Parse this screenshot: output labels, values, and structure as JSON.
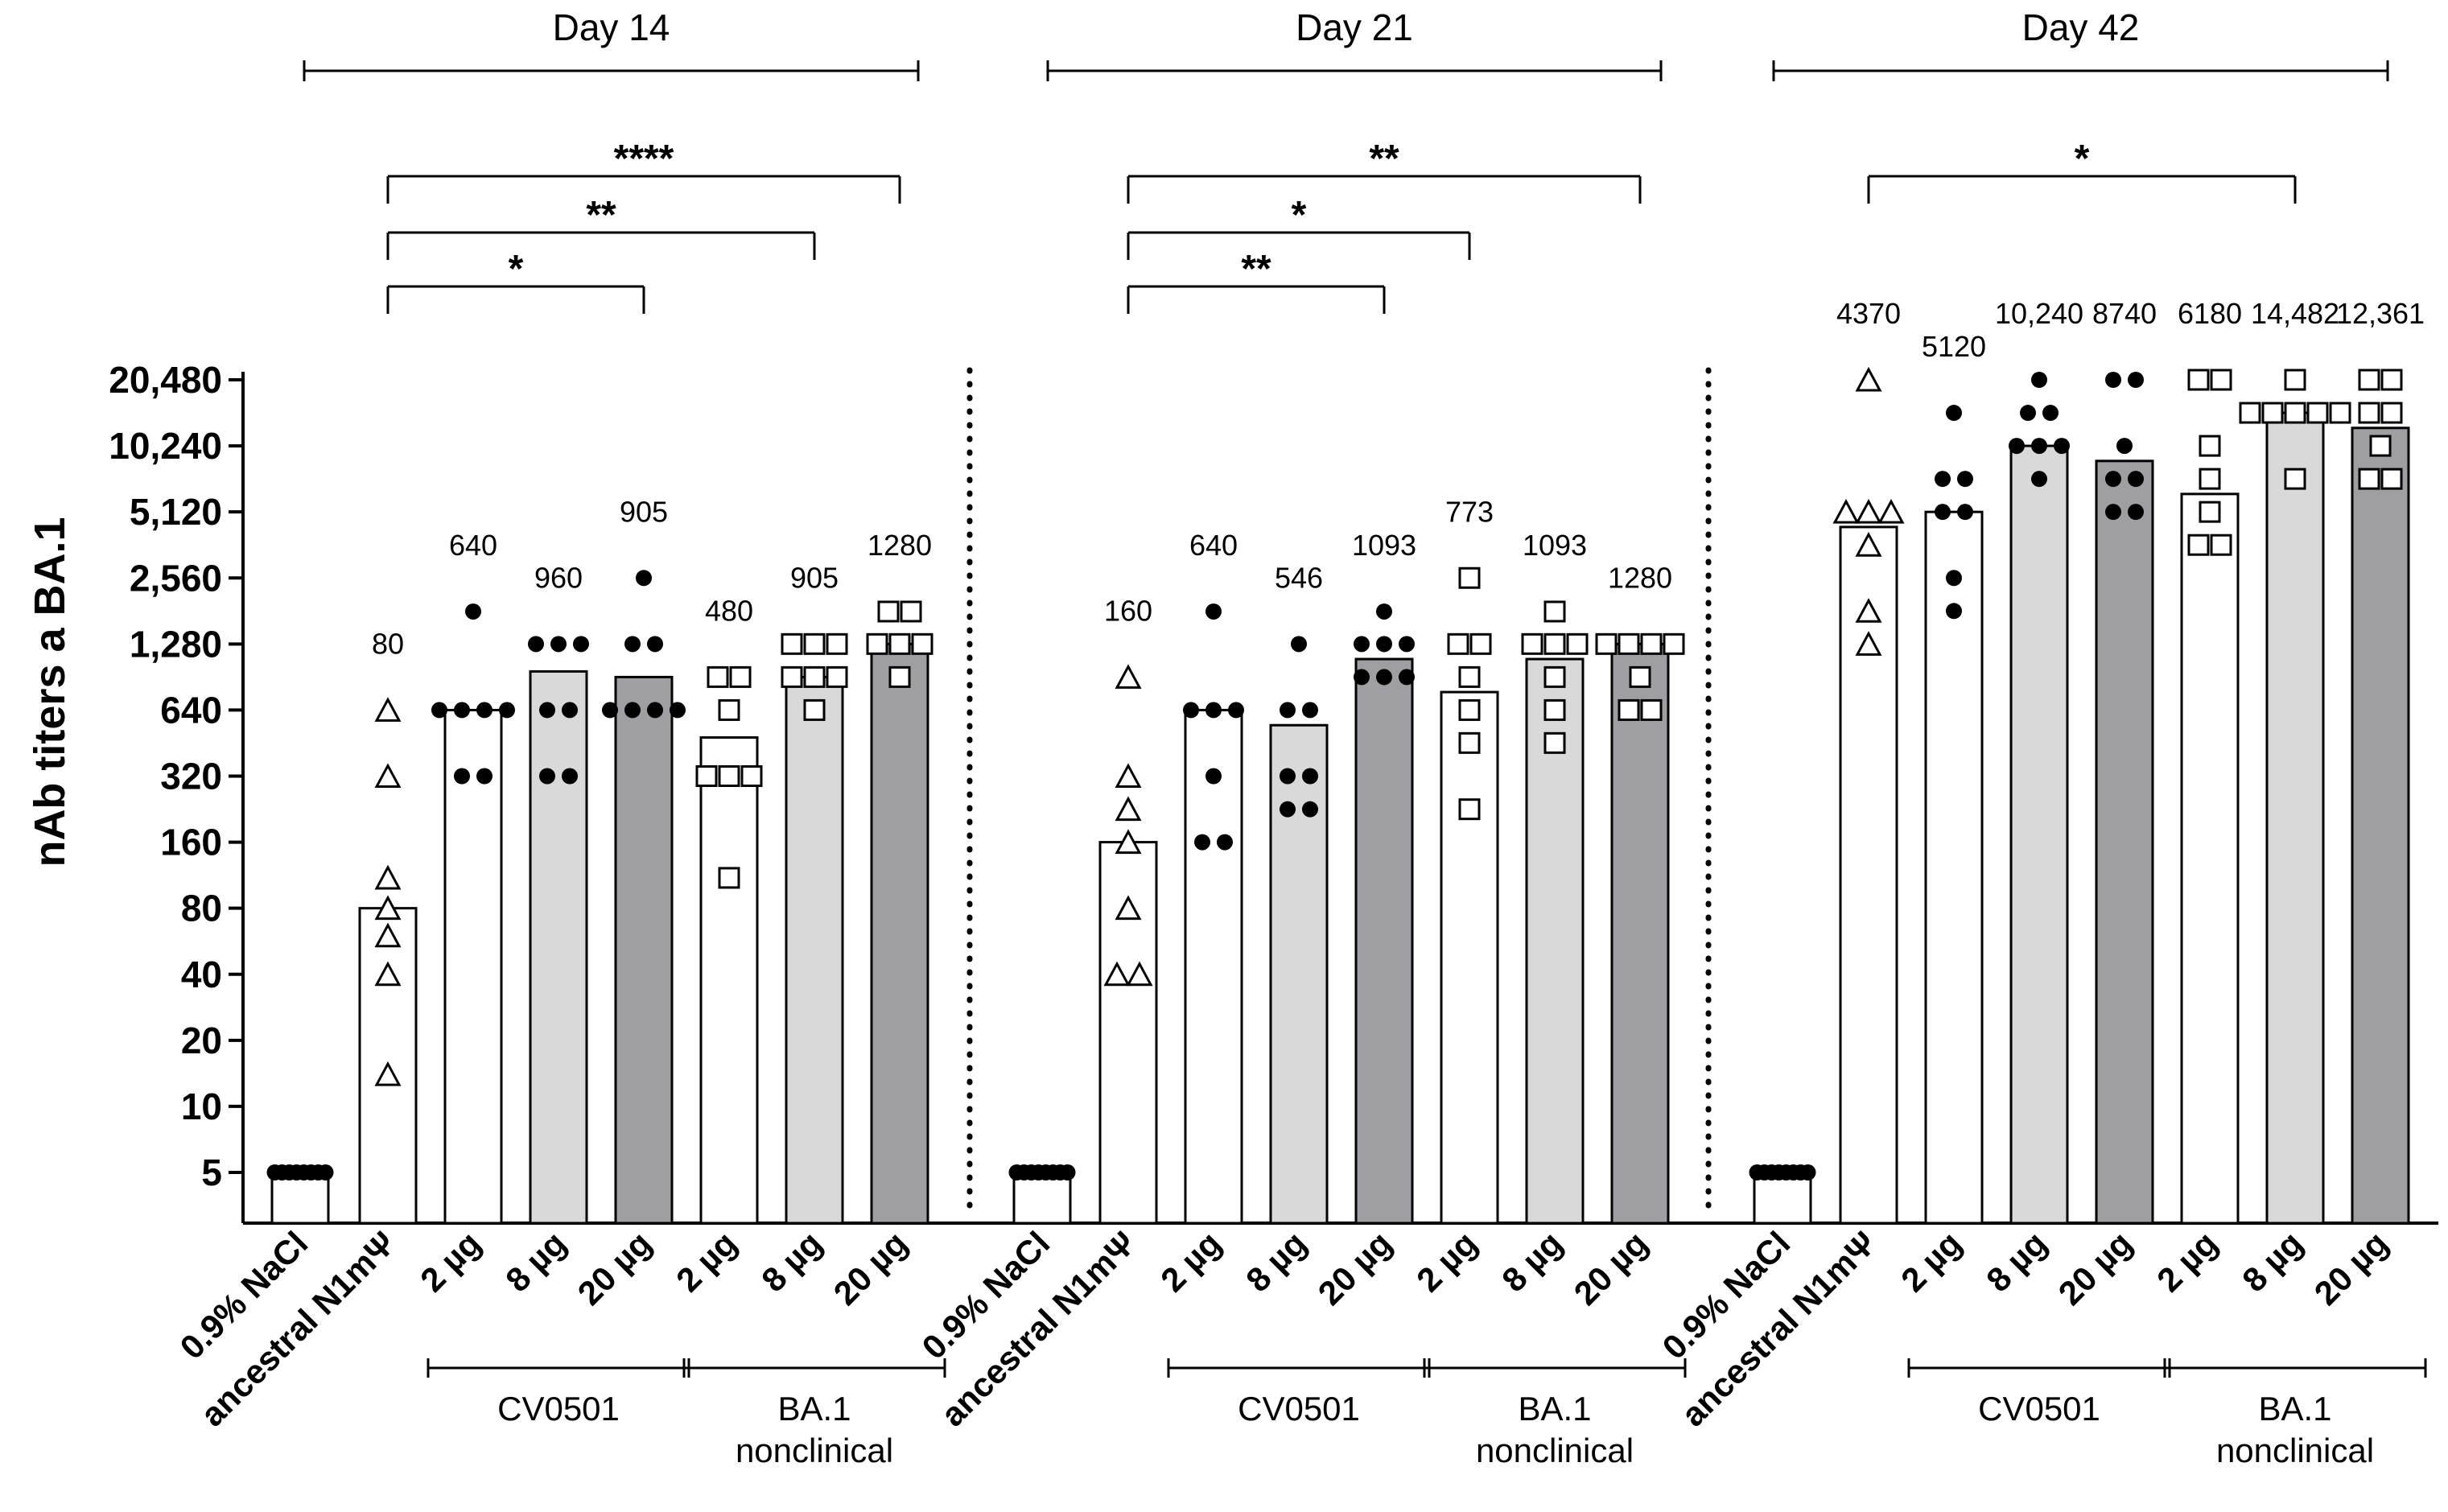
{
  "chart_data": {
    "type": "bar",
    "scale": "log2",
    "ylabel": "nAb titers a BA.1",
    "y_ticks": [
      "5",
      "10",
      "20",
      "40",
      "80",
      "160",
      "320",
      "640",
      "1,280",
      "2,560",
      "5,120",
      "10,240",
      "20,480"
    ],
    "y_tick_values": [
      5,
      10,
      20,
      40,
      80,
      160,
      320,
      640,
      1280,
      2560,
      5120,
      10240,
      20480
    ],
    "categories": [
      "0.9% NaCl",
      "ancestral N1mΨ",
      "2 µg",
      "8 µg",
      "20 µg",
      "2 µg",
      "8 µg",
      "20 µg"
    ],
    "group_labels": [
      {
        "label": "CV0501",
        "members": [
          2,
          3,
          4
        ]
      },
      {
        "label": "BA.1",
        "label2": "nonclinical",
        "members": [
          5,
          6,
          7
        ]
      }
    ],
    "panels": [
      {
        "title": "Day 14",
        "bars": [
          5,
          80,
          640,
          960,
          905,
          480,
          905,
          1280
        ],
        "value_labels": [
          "",
          "80",
          "640",
          "960",
          "905",
          "480",
          "905",
          "1280"
        ],
        "points": [
          [
            5,
            5,
            5,
            5,
            5,
            5,
            5,
            5
          ],
          [
            640,
            320,
            110,
            80,
            60,
            40,
            14
          ],
          [
            1800,
            640,
            640,
            640,
            640,
            320,
            320
          ],
          [
            1280,
            1280,
            1280,
            640,
            640,
            320,
            320
          ],
          [
            2560,
            1280,
            1280,
            640,
            640,
            640,
            640
          ],
          [
            905,
            905,
            640,
            320,
            320,
            320,
            110
          ],
          [
            1280,
            1280,
            1280,
            905,
            905,
            905,
            640
          ],
          [
            1800,
            1800,
            1280,
            1280,
            1280,
            905
          ]
        ],
        "significance": [
          {
            "from": 1,
            "to": 4,
            "label": "*"
          },
          {
            "from": 1,
            "to": 6,
            "label": "**"
          },
          {
            "from": 1,
            "to": 7,
            "label": "****"
          }
        ]
      },
      {
        "title": "Day 21",
        "bars": [
          5,
          160,
          640,
          546,
          1093,
          773,
          1093,
          1280
        ],
        "value_labels": [
          "",
          "160",
          "640",
          "546",
          "1093",
          "773",
          "1093",
          "1280"
        ],
        "points": [
          [
            5,
            5,
            5,
            5,
            5,
            5,
            5,
            5
          ],
          [
            905,
            320,
            226,
            160,
            80,
            40,
            40
          ],
          [
            1800,
            640,
            640,
            640,
            320,
            160,
            160
          ],
          [
            1280,
            640,
            640,
            320,
            320,
            226,
            226
          ],
          [
            1800,
            1280,
            1280,
            1280,
            905,
            905,
            905
          ],
          [
            2560,
            1280,
            1280,
            905,
            640,
            453,
            226
          ],
          [
            1800,
            1280,
            1280,
            1280,
            905,
            640,
            453
          ],
          [
            1280,
            1280,
            1280,
            1280,
            905,
            640,
            640
          ]
        ],
        "significance": [
          {
            "from": 1,
            "to": 4,
            "label": "**"
          },
          {
            "from": 1,
            "to": 5,
            "label": "*"
          },
          {
            "from": 1,
            "to": 7,
            "label": "**"
          }
        ]
      },
      {
        "title": "Day 42",
        "bars": [
          5,
          4370,
          5120,
          10240,
          8740,
          6180,
          14482,
          12361
        ],
        "value_labels": [
          "",
          "4370",
          "5120",
          "10,240",
          "8740",
          "6180",
          "14,482",
          "12,361"
        ],
        "points": [
          [
            5,
            5,
            5,
            5,
            5,
            5,
            5,
            5
          ],
          [
            20480,
            5120,
            5120,
            5120,
            3620,
            1810,
            1280
          ],
          [
            14480,
            7240,
            7240,
            5120,
            5120,
            2560,
            1810
          ],
          [
            20480,
            14480,
            14480,
            10240,
            10240,
            10240,
            7240
          ],
          [
            20480,
            20480,
            10240,
            7240,
            7240,
            5120,
            5120
          ],
          [
            20480,
            20480,
            10240,
            7240,
            5120,
            3620,
            3620
          ],
          [
            20480,
            14480,
            14480,
            14480,
            14480,
            14480,
            7240
          ],
          [
            20480,
            20480,
            14480,
            14480,
            10240,
            7240,
            7240
          ]
        ],
        "significance": [
          {
            "from": 1,
            "to": 6,
            "label": "*"
          }
        ]
      }
    ],
    "bar_fills": [
      "#ffffff",
      "#ffffff",
      "#ffffff",
      "#d9d9d9",
      "#9e9ea3",
      "#ffffff",
      "#d9d9d9",
      "#9e9ea3"
    ],
    "markers": [
      "dot",
      "triangle",
      "dot",
      "dot",
      "dot",
      "square",
      "square",
      "square"
    ]
  }
}
